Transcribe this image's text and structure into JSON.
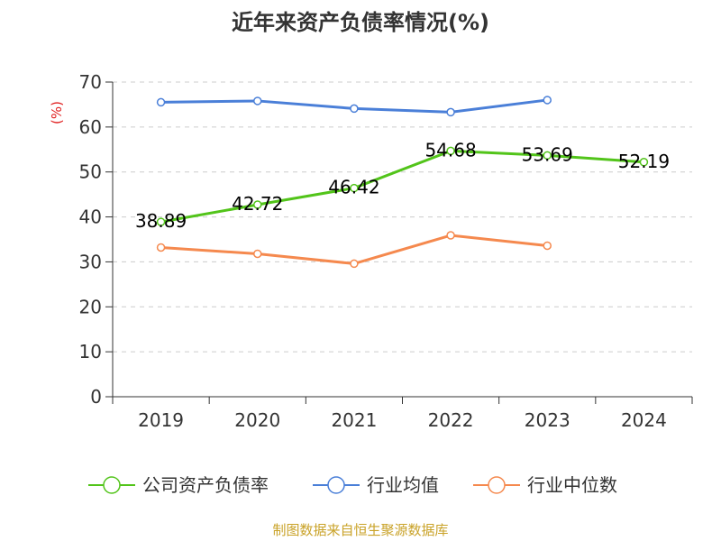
{
  "chart_data": {
    "type": "line",
    "title": "近年来资产负债率情况(%)",
    "ylabel": "(%)",
    "xlabel": "",
    "categories": [
      "2019",
      "2020",
      "2021",
      "2022",
      "2023",
      "2024"
    ],
    "ylim": [
      0,
      70
    ],
    "yticks": [
      0,
      10,
      20,
      30,
      40,
      50,
      60,
      70
    ],
    "grid": true,
    "legend_position": "bottom",
    "series": [
      {
        "name": "公司资产负债率",
        "color": "#52c41a",
        "values": [
          38.89,
          42.72,
          46.42,
          54.68,
          53.69,
          52.19
        ],
        "show_labels": true
      },
      {
        "name": "行业均值",
        "color": "#4a7fd8",
        "values": [
          65.5,
          65.8,
          64.1,
          63.3,
          66.0,
          null
        ],
        "show_labels": false
      },
      {
        "name": "行业中位数",
        "color": "#f5894e",
        "values": [
          33.2,
          31.8,
          29.6,
          35.9,
          33.6,
          null
        ],
        "show_labels": false
      }
    ]
  },
  "source": "制图数据来自恒生聚源数据库"
}
